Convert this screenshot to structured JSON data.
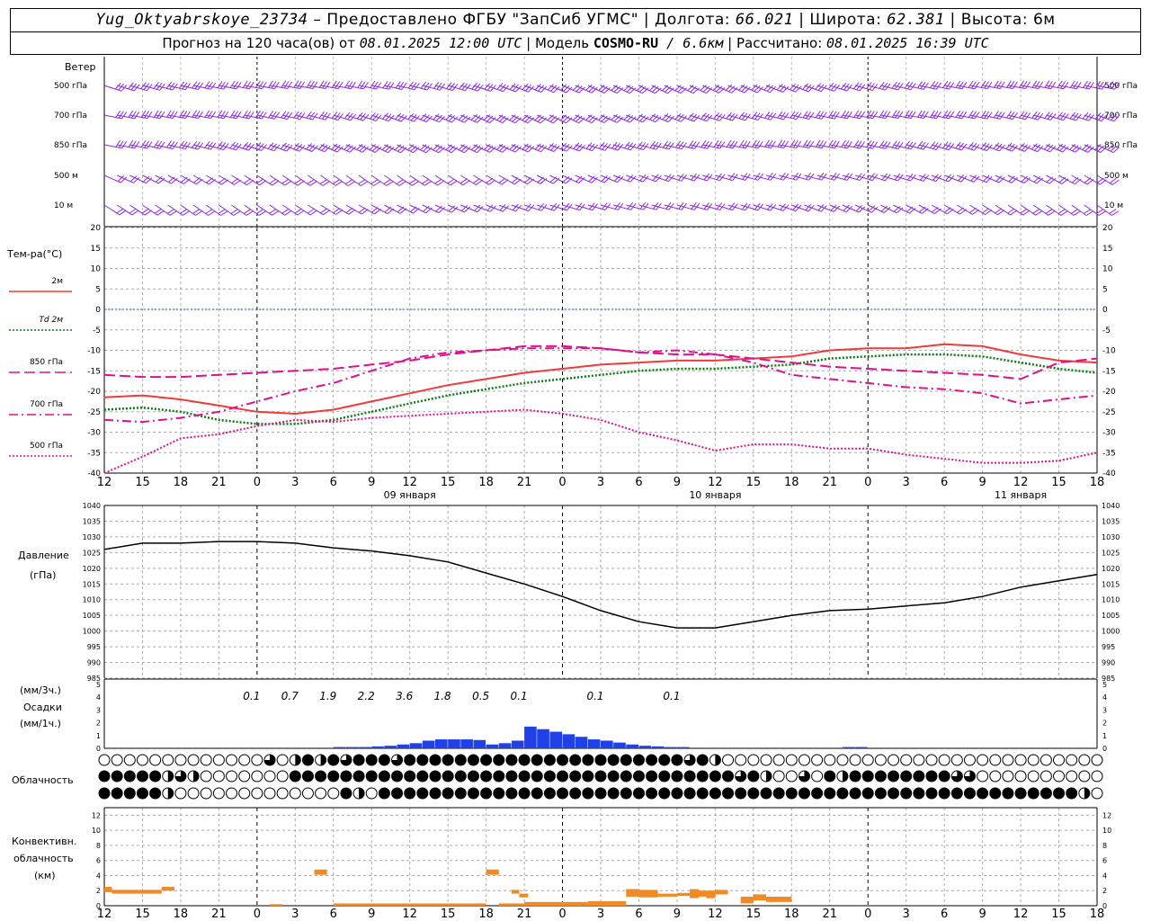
{
  "header": {
    "station": "Yug_Oktyabrskoye_23734",
    "provider": " – Предоставлено ФГБУ \"ЗапСиб УГМС\" | Долгота: ",
    "lon": "66.021",
    "lat_label": " | Широта: ",
    "lat": "62.381",
    "alt": " | Высота: 6м",
    "forecast_prefix": "Прогноз на 120 часа(ов)  от ",
    "forecast_time": "08.01.2025 12:00 UTC",
    "model_label": "  | Модель ",
    "model": "COSMO-RU",
    "resolution": " / 6.6км",
    "calc_label": " | Рассчитано: ",
    "calc_time": "08.01.2025 16:39 UTC"
  },
  "colors": {
    "t2m": "#f03a3a",
    "td2m": "#0a7a14",
    "t850": "#e0108c",
    "wind": "#8a2be2",
    "pressure": "#000000",
    "precip": "#2040e8",
    "convective": "#f08a24",
    "zero_line": "#3050e0"
  },
  "chart_data": [
    {
      "type": "wind_barbs",
      "panel_title": "Ветер",
      "levels": [
        "500 гПа",
        "700 гПа",
        "850 гПа",
        "500 м",
        "10  м"
      ]
    },
    {
      "type": "line",
      "panel_title": "Тем-ра(°C)",
      "y_ticks": [
        20,
        15,
        10,
        5,
        0,
        -5,
        -10,
        -15,
        -20,
        -25,
        -30,
        -35,
        -40
      ],
      "ylim": [
        -40,
        20
      ],
      "x_tick_labels": [
        "12",
        "15",
        "18",
        "21",
        "0",
        "3",
        "6",
        "9",
        "12",
        "15",
        "18",
        "21",
        "0",
        "3",
        "6",
        "9",
        "12",
        "15",
        "18",
        "21",
        "0",
        "3",
        "6",
        "9",
        "12",
        "15",
        "18"
      ],
      "day_labels": [
        "09 января",
        "10 января",
        "11 января"
      ],
      "x": [
        0,
        3,
        6,
        9,
        12,
        15,
        18,
        21,
        24,
        27,
        30,
        33,
        36,
        39,
        42,
        45,
        48,
        51,
        54,
        57,
        60,
        63,
        66,
        69,
        72,
        75,
        78
      ],
      "series": [
        {
          "name": "2м",
          "style": "solid",
          "color_key": "t2m",
          "values": [
            -21.5,
            -21,
            -22,
            -23.5,
            -25,
            -25.5,
            -24.5,
            -22.5,
            -20.5,
            -18.5,
            -17,
            -15.5,
            -14.5,
            -13.5,
            -13,
            -12.5,
            -12.5,
            -12,
            -11.5,
            -10,
            -9.5,
            -9.5,
            -8.5,
            -9,
            -11,
            -12.5,
            -13
          ]
        },
        {
          "name": "Td  2м",
          "style": "dotted",
          "color_key": "td2m",
          "values": [
            -24.5,
            -24,
            -25,
            -27,
            -28,
            -28,
            -27,
            -25,
            -23,
            -21,
            -19.5,
            -18,
            -17,
            -16,
            -15,
            -14.5,
            -14.5,
            -14,
            -13.5,
            -12,
            -11.5,
            -11,
            -11,
            -11.5,
            -13,
            -14.5,
            -15.5
          ]
        },
        {
          "name": "850 гПа",
          "style": "longdash",
          "color_key": "t850",
          "values": [
            -16,
            -16.5,
            -16.5,
            -16,
            -15.5,
            -15,
            -14.5,
            -13.5,
            -12.5,
            -11,
            -10,
            -9,
            -9,
            -9.5,
            -10.5,
            -11,
            -11,
            -12,
            -13,
            -14,
            -14.5,
            -15,
            -15.5,
            -16,
            -17,
            -13,
            -12
          ]
        },
        {
          "name": "700 гПа",
          "style": "dashdot",
          "color_key": "t850",
          "values": [
            -27,
            -27.5,
            -26.5,
            -25,
            -22.5,
            -20,
            -18,
            -15,
            -12,
            -10.5,
            -10,
            -9.5,
            -9.5,
            -9.5,
            -10.5,
            -10,
            -11,
            -13,
            -16,
            -17,
            -18,
            -19,
            -19.5,
            -20.5,
            -23,
            -22,
            -21
          ]
        },
        {
          "name": "500 гПа",
          "style": "dotted",
          "color_key": "t850",
          "values": [
            -40,
            -36,
            -31.5,
            -30.5,
            -28.5,
            -27,
            -27.5,
            -26.5,
            -26,
            -25.5,
            -25,
            -24.5,
            -25.5,
            -27,
            -30,
            -32,
            -34.5,
            -33,
            -33,
            -34,
            -34,
            -35.5,
            -36.5,
            -37.5,
            -37.5,
            -37,
            -35
          ]
        }
      ]
    },
    {
      "type": "line",
      "panel_title": "Давление",
      "unit": "(гПа)",
      "y_ticks": [
        1040,
        1035,
        1030,
        1025,
        1020,
        1015,
        1010,
        1005,
        1000,
        995,
        990,
        985
      ],
      "ylim": [
        985,
        1040
      ],
      "x": [
        0,
        3,
        6,
        9,
        12,
        15,
        18,
        21,
        24,
        27,
        30,
        33,
        36,
        39,
        42,
        45,
        48,
        51,
        54,
        57,
        60,
        63,
        66,
        69,
        72,
        75,
        78
      ],
      "series": [
        {
          "color_key": "pressure",
          "values": [
            1026,
            1028,
            1028,
            1028.5,
            1028.5,
            1028,
            1026.5,
            1025.5,
            1024,
            1022,
            1018.5,
            1015,
            1011,
            1006.5,
            1003,
            1001,
            1001,
            1003,
            1005,
            1006.5,
            1007,
            1008,
            1009,
            1011,
            1014,
            1016,
            1018
          ]
        }
      ]
    },
    {
      "type": "bar",
      "panel_title": "Осадки",
      "units": [
        "(мм/3ч.)",
        "(мм/1ч.)"
      ],
      "y_ticks": [
        5,
        4,
        3,
        2,
        1,
        0
      ],
      "ylim": [
        0,
        5
      ],
      "labels_3h": [
        {
          "x": 12,
          "value": "0.1"
        },
        {
          "x": 15,
          "value": "0.7"
        },
        {
          "x": 18,
          "value": "1.9"
        },
        {
          "x": 21,
          "value": "2.2"
        },
        {
          "x": 24,
          "value": "3.6"
        },
        {
          "x": 27,
          "value": "1.8"
        },
        {
          "x": 30,
          "value": "0.5"
        },
        {
          "x": 33,
          "value": "0.1"
        },
        {
          "x": 39,
          "value": "0.1"
        },
        {
          "x": 45,
          "value": "0.1"
        }
      ],
      "hourly": [
        0,
        0,
        0,
        0,
        0,
        0,
        0,
        0,
        0,
        0,
        0,
        0,
        0,
        0,
        0,
        0,
        0,
        0,
        0.1,
        0.1,
        0.1,
        0.15,
        0.2,
        0.3,
        0.4,
        0.6,
        0.7,
        0.7,
        0.7,
        0.65,
        0.3,
        0.4,
        0.6,
        1.7,
        1.5,
        1.3,
        1.1,
        0.9,
        0.7,
        0.6,
        0.45,
        0.3,
        0.2,
        0.15,
        0.1,
        0.1,
        0.05,
        0,
        0,
        0,
        0,
        0,
        0.05,
        0,
        0,
        0,
        0,
        0,
        0.1,
        0.1,
        0,
        0,
        0,
        0,
        0,
        0,
        0,
        0,
        0,
        0,
        0,
        0,
        0,
        0,
        0,
        0,
        0,
        0
      ]
    },
    {
      "type": "cloud_symbols",
      "panel_title": "Облачность",
      "rows": [
        [
          0,
          0,
          0,
          0,
          0,
          0,
          0,
          0,
          0,
          0,
          0,
          0,
          0,
          2,
          0,
          1,
          3,
          1,
          3,
          2,
          3,
          3,
          3,
          2,
          3,
          3,
          3,
          3,
          3,
          3,
          3,
          3,
          3,
          3,
          3,
          3,
          3,
          3,
          3,
          3,
          3,
          3,
          3,
          3,
          3,
          3,
          2,
          3,
          1,
          0,
          0,
          0,
          0,
          0,
          0,
          0,
          0,
          0,
          0,
          0,
          0,
          0,
          0,
          0,
          0,
          0,
          0,
          0,
          0,
          0,
          0,
          0,
          0,
          0,
          0,
          0,
          0,
          0,
          0
        ],
        [
          3,
          3,
          3,
          3,
          3,
          1,
          2,
          1,
          0,
          0,
          0,
          0,
          0,
          0,
          0,
          3,
          3,
          3,
          3,
          3,
          3,
          3,
          3,
          3,
          3,
          3,
          3,
          3,
          3,
          3,
          3,
          3,
          3,
          3,
          3,
          3,
          3,
          3,
          3,
          3,
          3,
          3,
          3,
          3,
          3,
          3,
          3,
          3,
          3,
          3,
          2,
          3,
          1,
          0,
          0,
          2,
          0,
          3,
          1,
          3,
          3,
          3,
          3,
          3,
          3,
          3,
          3,
          2,
          2,
          0,
          0,
          0,
          0,
          0,
          0,
          0,
          0,
          0,
          0
        ],
        [
          3,
          3,
          3,
          3,
          3,
          1,
          0,
          0,
          0,
          0,
          0,
          0,
          0,
          0,
          0,
          0,
          0,
          0,
          0,
          3,
          1,
          0,
          3,
          3,
          3,
          3,
          3,
          3,
          3,
          3,
          3,
          3,
          3,
          3,
          3,
          3,
          3,
          3,
          3,
          3,
          3,
          3,
          3,
          3,
          3,
          3,
          3,
          3,
          3,
          3,
          3,
          3,
          3,
          3,
          3,
          3,
          3,
          3,
          3,
          3,
          3,
          3,
          3,
          3,
          3,
          3,
          3,
          3,
          3,
          3,
          3,
          3,
          3,
          3,
          3,
          3,
          3,
          1,
          0
        ]
      ]
    },
    {
      "type": "bar",
      "panel_title": "Конвективн. облачность",
      "unit": "(км)",
      "y_ticks": [
        12,
        10,
        8,
        6,
        4,
        2,
        0
      ],
      "ylim": [
        0,
        13
      ],
      "segments": [
        {
          "x0": 0,
          "x1": 0.6,
          "base": 1.8,
          "top": 2.5
        },
        {
          "x0": 0.6,
          "x1": 4.5,
          "base": 1.6,
          "top": 2.1
        },
        {
          "x0": 4.5,
          "x1": 5.5,
          "base": 2.0,
          "top": 2.5
        },
        {
          "x0": 16.5,
          "x1": 17.5,
          "base": 4.1,
          "top": 4.8
        },
        {
          "x0": 30,
          "x1": 31,
          "base": 4.1,
          "top": 4.8
        },
        {
          "x0": 32,
          "x1": 32.6,
          "base": 1.6,
          "top": 2.1
        },
        {
          "x0": 32.6,
          "x1": 33.3,
          "base": 1.1,
          "top": 1.6
        },
        {
          "x0": 41,
          "x1": 42,
          "base": 1.2,
          "top": 2.2
        },
        {
          "x0": 42,
          "x1": 43.5,
          "base": 1.1,
          "top": 2.1
        },
        {
          "x0": 43.5,
          "x1": 45,
          "base": 1.2,
          "top": 1.6
        },
        {
          "x0": 45,
          "x1": 46,
          "base": 1.3,
          "top": 1.7
        },
        {
          "x0": 46,
          "x1": 46.7,
          "base": 1.0,
          "top": 2.2
        },
        {
          "x0": 46.7,
          "x1": 47.3,
          "base": 1.2,
          "top": 2.0
        },
        {
          "x0": 47.3,
          "x1": 48,
          "base": 1.0,
          "top": 2.0
        },
        {
          "x0": 48,
          "x1": 49,
          "base": 1.5,
          "top": 2.1
        },
        {
          "x0": 50,
          "x1": 51,
          "base": 0.3,
          "top": 1.2
        },
        {
          "x0": 51,
          "x1": 52,
          "base": 0.7,
          "top": 1.5
        },
        {
          "x0": 52,
          "x1": 54,
          "base": 0.5,
          "top": 1.2
        }
      ],
      "thin_bases": [
        {
          "x0": 13,
          "x1": 14,
          "h": 0.2
        },
        {
          "x0": 18,
          "x1": 30,
          "h": 0.3
        },
        {
          "x0": 31,
          "x1": 33,
          "h": 0.3
        },
        {
          "x0": 33,
          "x1": 38,
          "h": 0.5
        },
        {
          "x0": 38,
          "x1": 41,
          "h": 0.6
        }
      ]
    }
  ]
}
